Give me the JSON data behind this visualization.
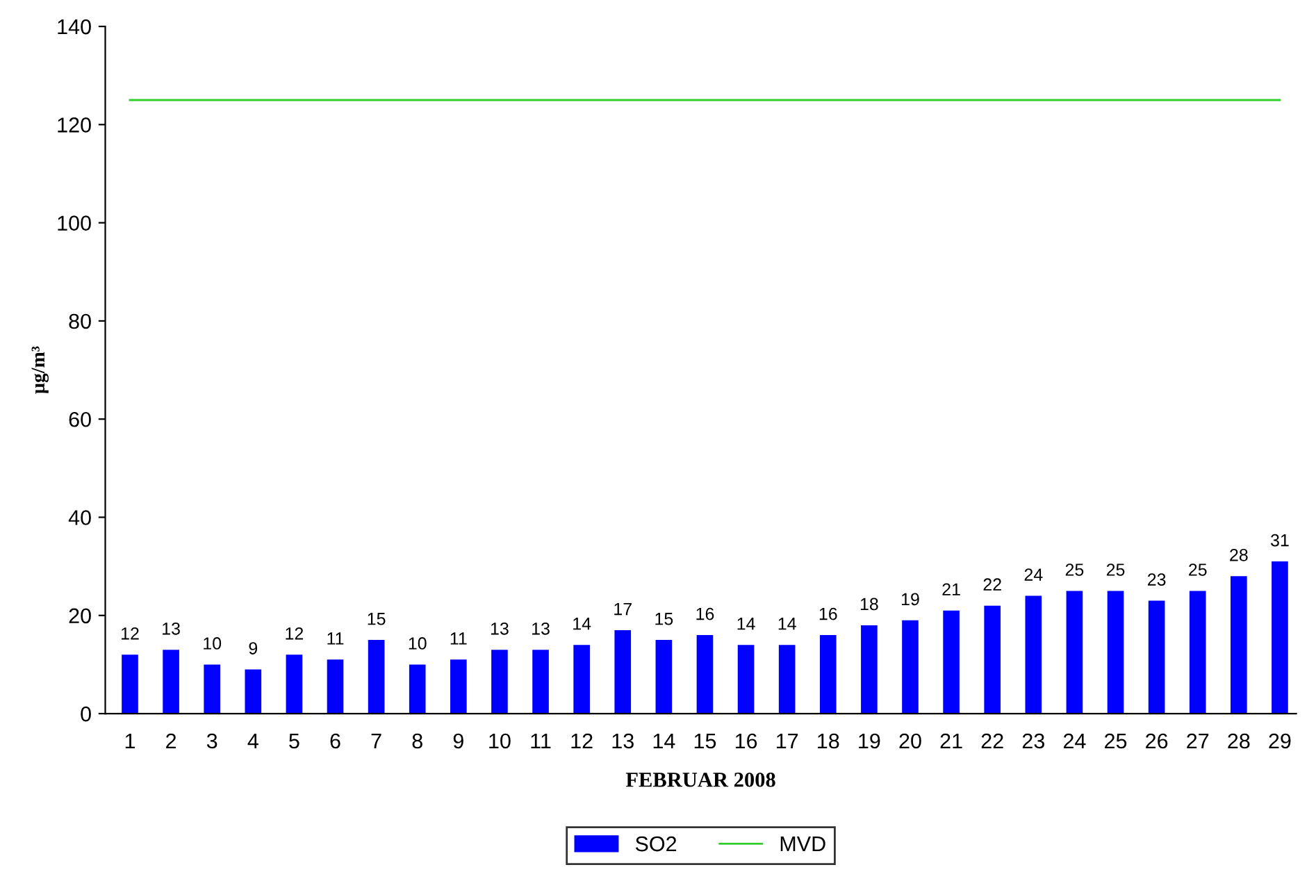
{
  "chart_data": {
    "type": "bar",
    "xlabel": "FEBRUAR 2008",
    "ylabel": "µg/m³",
    "categories": [
      "1",
      "2",
      "3",
      "4",
      "5",
      "6",
      "7",
      "8",
      "9",
      "10",
      "11",
      "12",
      "13",
      "14",
      "15",
      "16",
      "17",
      "18",
      "19",
      "20",
      "21",
      "22",
      "23",
      "24",
      "25",
      "26",
      "27",
      "28",
      "29"
    ],
    "series": [
      {
        "name": "SO2",
        "color": "#0000ff",
        "values": [
          12,
          13,
          10,
          9,
          12,
          11,
          15,
          10,
          11,
          13,
          13,
          14,
          17,
          15,
          16,
          14,
          14,
          16,
          18,
          19,
          21,
          22,
          24,
          25,
          25,
          23,
          25,
          28,
          31
        ],
        "value_labels": [
          "12",
          "13",
          "10",
          "9",
          "12",
          "11",
          "15",
          "10",
          "11",
          "13",
          "13",
          "14",
          "17",
          "15",
          "16",
          "14",
          "14",
          "16",
          "18",
          "19",
          "21",
          "22",
          "24",
          "25",
          "25",
          "23",
          "25",
          "28",
          "31"
        ]
      },
      {
        "name": "MVD",
        "type": "line",
        "color": "#33cc33",
        "values": [
          125,
          125,
          125,
          125,
          125,
          125,
          125,
          125,
          125,
          125,
          125,
          125,
          125,
          125,
          125,
          125,
          125,
          125,
          125,
          125,
          125,
          125,
          125,
          125,
          125,
          125,
          125,
          125,
          125
        ]
      }
    ],
    "ylim": [
      0,
      140
    ],
    "yticks": [
      0,
      20,
      40,
      60,
      80,
      100,
      120,
      140
    ],
    "grid": false,
    "legend": "bottom",
    "marker": "none",
    "line_style": "solid"
  }
}
